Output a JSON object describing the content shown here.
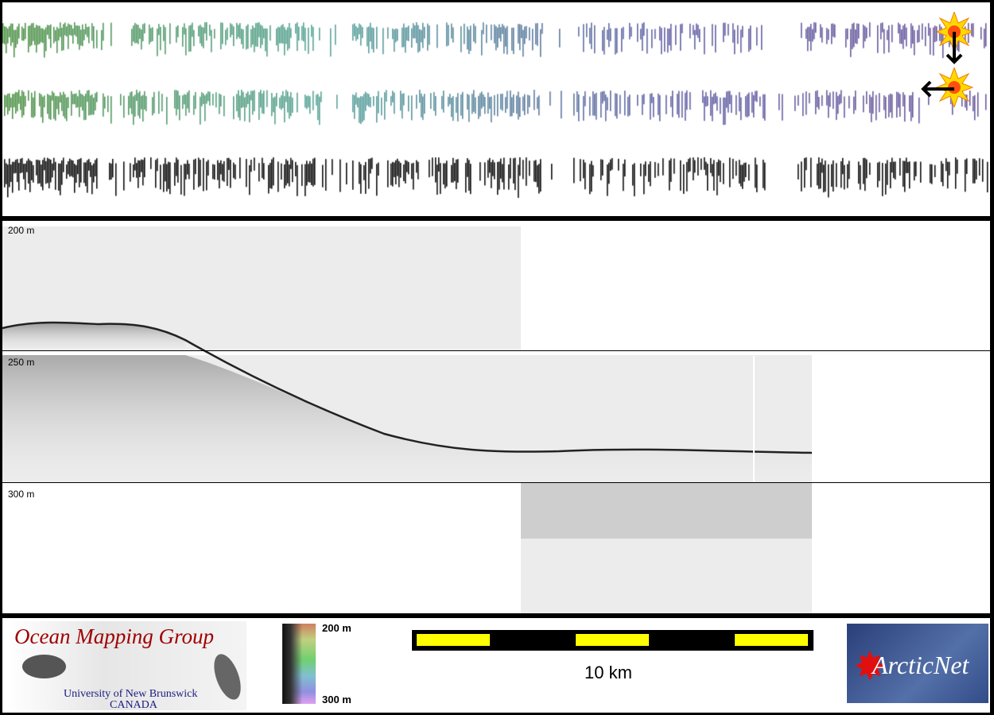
{
  "depth_labels": {
    "d200": "200 m",
    "d250": "250 m",
    "d300": "300 m"
  },
  "colorbar": {
    "top": "200 m",
    "bottom": "300 m"
  },
  "scale_bar": {
    "label": "10 km",
    "color": "#ffff00"
  },
  "logo_omg": {
    "title": "Ocean Mapping Group",
    "line1": "University of New Brunswick",
    "line2": "CANADA"
  },
  "logo_arcticnet": {
    "text": "ArcticNet"
  },
  "icons": [
    "sun-down-arrow-icon",
    "sun-left-arrow-icon"
  ]
}
